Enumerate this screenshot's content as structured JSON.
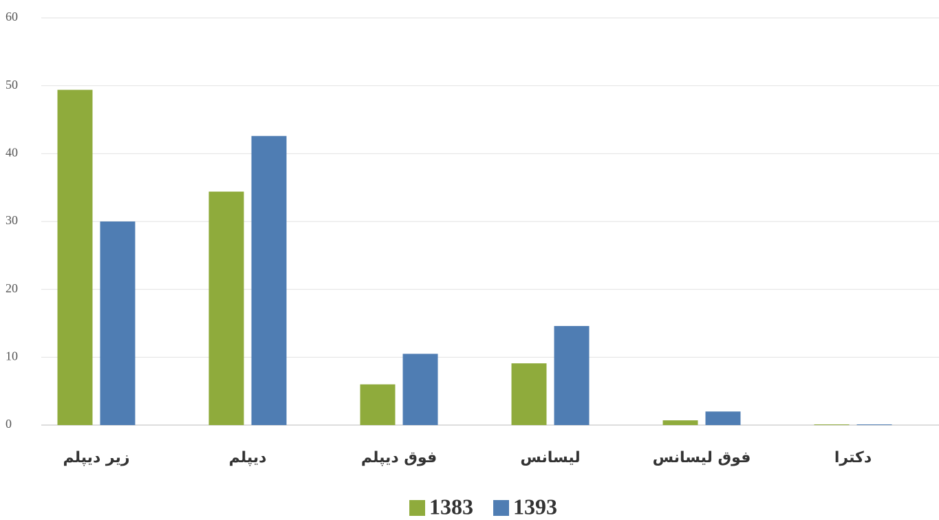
{
  "chart_data": {
    "type": "bar",
    "categories": [
      "زیر دیپلم",
      "دیپلم",
      "فوق دیپلم",
      "لیسانس",
      "فوق لیسانس",
      "دکترا"
    ],
    "series": [
      {
        "name": "1383",
        "color": "#8fab3c",
        "values": [
          49.4,
          34.4,
          6.0,
          9.1,
          0.7,
          0.1
        ]
      },
      {
        "name": "1393",
        "color": "#4f7db3",
        "values": [
          30.0,
          42.6,
          10.5,
          14.6,
          2.0,
          0.1
        ]
      }
    ],
    "ylim": [
      0,
      60
    ],
    "yticks": [
      0,
      10,
      20,
      30,
      40,
      50,
      60
    ],
    "grid": true,
    "legend": "bottom"
  }
}
